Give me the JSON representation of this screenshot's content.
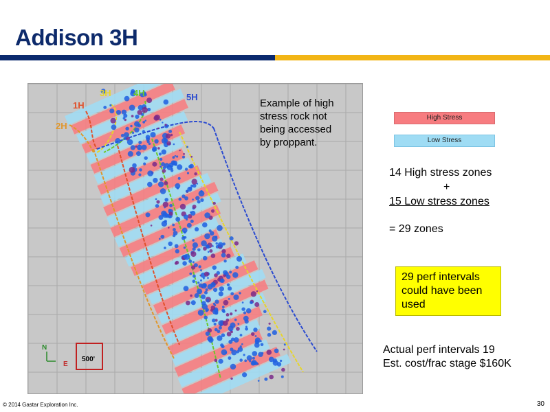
{
  "slide": {
    "title": "Addison 3H",
    "callout": "Example of high\nstress rock not\nbeing accessed\nby proppant.",
    "legend": {
      "high": "High Stress",
      "low": "Low Stress"
    },
    "zones": {
      "high": "14 High stress zones",
      "plus": "+",
      "low": "15 Low stress zones",
      "total": "= 29 zones"
    },
    "perf_box": "29 perf intervals could have been used",
    "actual": {
      "line1": "Actual perf intervals 19",
      "line2": "Est. cost/frac stage $160K"
    },
    "footer": "© 2014 Gastar Exploration Inc.",
    "page_number": "30"
  },
  "map": {
    "well_labels": [
      "1H",
      "2H",
      "3H",
      "4H",
      "5H"
    ],
    "north_label": "N",
    "east_label": "E",
    "scale_label": "500'",
    "colors": {
      "high_stress": "#f77c80",
      "low_stress": "#9fdcf4",
      "event": "#1f5fe0",
      "event_strong": "#7a2a8a",
      "well_1H": "#e0502a",
      "well_2H": "#e0962a",
      "well_3H": "#e6d52a",
      "well_4H": "#6cc82a",
      "well_5H": "#2a4ad0"
    }
  }
}
